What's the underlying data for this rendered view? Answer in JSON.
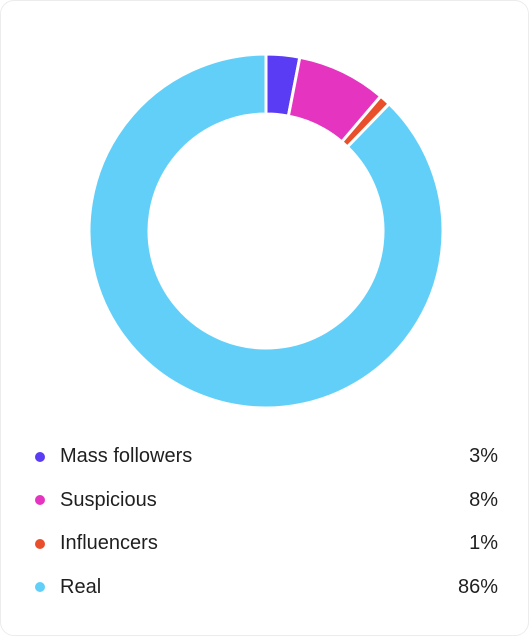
{
  "chart_data": {
    "type": "pie",
    "variant": "donut",
    "title": "",
    "categories": [
      "Mass followers",
      "Suspicious",
      "Influencers",
      "Real"
    ],
    "values": [
      3,
      8,
      1,
      86
    ],
    "value_labels": [
      "3%",
      "8%",
      "1%",
      "86%"
    ],
    "colors": [
      "#5b3cf5",
      "#e535c0",
      "#e94f2b",
      "#62cff9"
    ],
    "legend_placement": "bottom"
  }
}
